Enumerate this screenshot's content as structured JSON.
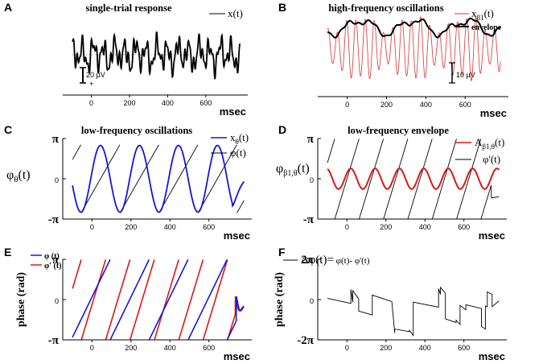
{
  "chart_data": [
    {
      "panel": "A",
      "type": "line",
      "title": "single-trial response",
      "xlabel": "msec",
      "xlim": [
        -150,
        820
      ],
      "xticks": [
        "0",
        "200",
        "400",
        "600"
      ],
      "series": [
        {
          "name": "x(t)",
          "color": "#000000"
        }
      ],
      "scalebar": {
        "label": "20 µV",
        "minus": "-",
        "plus": "+"
      }
    },
    {
      "panel": "B",
      "type": "line",
      "title": "high-frequency oscillations",
      "xlabel": "msec",
      "xlim": [
        -150,
        820
      ],
      "xticks": [
        "0",
        "200",
        "400",
        "600"
      ],
      "series": [
        {
          "name": "xβ1(t)",
          "name_main": "x",
          "name_sub": "β1",
          "name_tail": "(t)",
          "color": "#e03030"
        },
        {
          "name": "envelope",
          "color": "#000000"
        }
      ],
      "scalebar": {
        "label": "10 µV"
      }
    },
    {
      "panel": "C",
      "type": "line",
      "title": "low-frequency oscillations",
      "xlabel": "msec",
      "xlim": [
        -150,
        820
      ],
      "ylim": [
        -3.1416,
        3.1416
      ],
      "xticks": [
        "0",
        "200",
        "400",
        "600"
      ],
      "yticks": [
        "π",
        "0",
        "-π"
      ],
      "ylabel_main": "φ",
      "ylabel_sub": "θ",
      "ylabel_tail": "(t)",
      "series": [
        {
          "name": "xθ(t)",
          "name_main": "x",
          "name_sub": "θ",
          "name_tail": "(t)",
          "color": "#1515e0",
          "frequency_hz": 5.0
        },
        {
          "name": "φ(t)",
          "color": "#000000"
        }
      ]
    },
    {
      "panel": "D",
      "type": "line",
      "title": "low-frequency envelope",
      "xlabel": "msec",
      "xlim": [
        -150,
        820
      ],
      "ylim": [
        -3.1416,
        3.1416
      ],
      "xticks": [
        "0",
        "200",
        "400",
        "600"
      ],
      "yticks": [
        "π",
        "0",
        "-π"
      ],
      "ylabel_main": "φ",
      "ylabel_sub": "β1,θ",
      "ylabel_tail": "(t)",
      "series": [
        {
          "name": "Aβ1,θ(t)",
          "name_main": "A",
          "name_sub": "β1,θ",
          "name_tail": "(t)",
          "color": "#e01515",
          "frequency_hz": 8.0
        },
        {
          "name": "φ'(t)",
          "color": "#000000",
          "frequency_hz": 8.0
        }
      ]
    },
    {
      "panel": "E",
      "type": "line",
      "title": "",
      "xlabel": "msec",
      "ylabel": "phase (rad)",
      "xlim": [
        -150,
        820
      ],
      "ylim": [
        -3.1416,
        3.1416
      ],
      "xticks": [
        "0",
        "200",
        "400",
        "600"
      ],
      "yticks": [
        "π",
        "0",
        "-π"
      ],
      "series": [
        {
          "name": "φ (t)",
          "color": "#1515e0",
          "frequency_hz": 5.0
        },
        {
          "name": "φ' (t)",
          "color": "#e01515",
          "frequency_hz": 8.0
        }
      ]
    },
    {
      "panel": "F",
      "type": "line",
      "title": "",
      "xlabel": "msec",
      "ylabel": "phase (rad)",
      "xlim": [
        -150,
        820
      ],
      "ylim": [
        -6.2832,
        6.2832
      ],
      "xticks": [
        "0",
        "200",
        "400",
        "600"
      ],
      "yticks": [
        "2π",
        "0",
        "-2π"
      ],
      "series": [
        {
          "name": "Δφ(t)= φ(t)- φ'(t)",
          "legend_main": "Δφ(t)=",
          "legend_tail": " φ(t)- φ'(t)",
          "color": "#000000"
        }
      ]
    }
  ]
}
